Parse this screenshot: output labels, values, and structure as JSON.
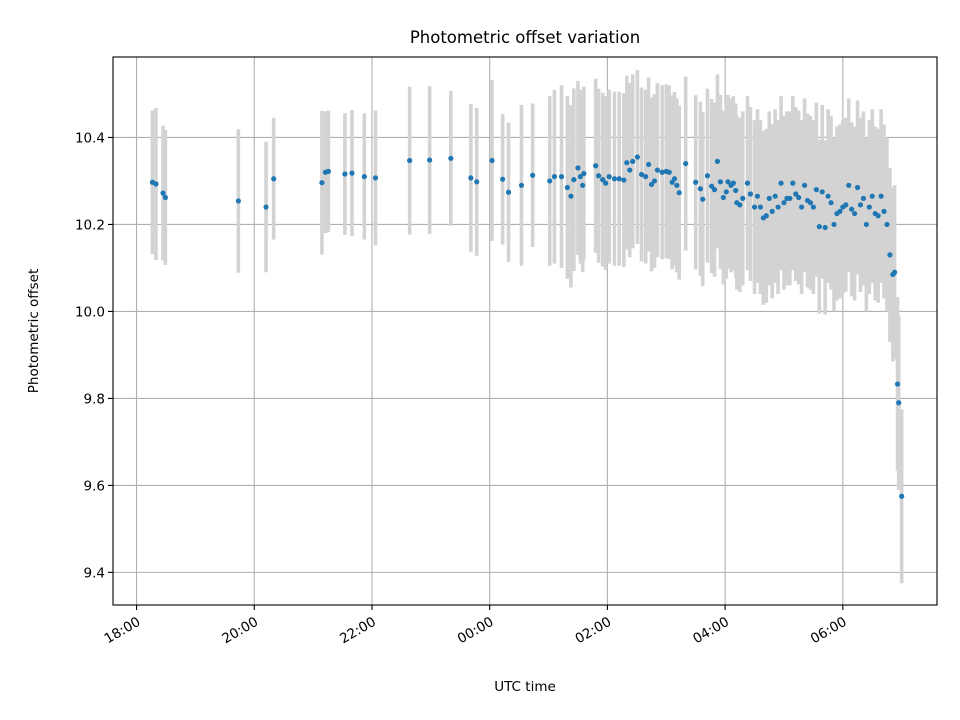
{
  "chart_data": {
    "type": "scatter",
    "title": "Photometric offset variation",
    "xlabel": "UTC time",
    "ylabel": "Photometric offset",
    "x_unit": "hours_from_00:00",
    "xlim": [
      -6.4,
      7.6
    ],
    "ylim": [
      9.325,
      10.585
    ],
    "x_ticks": [
      {
        "value": -6,
        "label": "18:00"
      },
      {
        "value": -4,
        "label": "20:00"
      },
      {
        "value": -2,
        "label": "22:00"
      },
      {
        "value": 0,
        "label": "00:00"
      },
      {
        "value": 2,
        "label": "02:00"
      },
      {
        "value": 4,
        "label": "04:00"
      },
      {
        "value": 6,
        "label": "06:00"
      }
    ],
    "y_ticks": [
      {
        "value": 9.4,
        "label": "9.4"
      },
      {
        "value": 9.6,
        "label": "9.6"
      },
      {
        "value": 9.8,
        "label": "9.8"
      },
      {
        "value": 10.0,
        "label": "10.0"
      },
      {
        "value": 10.2,
        "label": "10.2"
      },
      {
        "value": 10.4,
        "label": "10.4"
      }
    ],
    "grid": true,
    "colors": {
      "point": "#1f77b4",
      "errorbar": "#d3d3d3"
    },
    "points": [
      [
        -5.73,
        10.297,
        0.165
      ],
      [
        -5.67,
        10.293,
        0.175
      ],
      [
        -5.55,
        10.272,
        0.155
      ],
      [
        -5.51,
        10.262,
        0.155
      ],
      [
        -4.27,
        10.254,
        0.165
      ],
      [
        -3.8,
        10.24,
        0.15
      ],
      [
        -3.67,
        10.305,
        0.14
      ],
      [
        -2.85,
        10.296,
        0.165
      ],
      [
        -2.79,
        10.32,
        0.14
      ],
      [
        -2.74,
        10.322,
        0.14
      ],
      [
        -2.46,
        10.316,
        0.14
      ],
      [
        -2.34,
        10.318,
        0.145
      ],
      [
        -2.13,
        10.31,
        0.145
      ],
      [
        -1.94,
        10.307,
        0.155
      ],
      [
        -1.36,
        10.347,
        0.17
      ],
      [
        -1.02,
        10.348,
        0.17
      ],
      [
        -0.66,
        10.352,
        0.155
      ],
      [
        -0.32,
        10.307,
        0.17
      ],
      [
        -0.22,
        10.298,
        0.17
      ],
      [
        0.04,
        10.347,
        0.185
      ],
      [
        0.22,
        10.304,
        0.15
      ],
      [
        0.32,
        10.274,
        0.16
      ],
      [
        0.54,
        10.29,
        0.185
      ],
      [
        0.73,
        10.313,
        0.165
      ],
      [
        1.02,
        10.3,
        0.195
      ],
      [
        1.1,
        10.31,
        0.2
      ],
      [
        1.22,
        10.31,
        0.21
      ],
      [
        1.32,
        10.285,
        0.21
      ],
      [
        1.38,
        10.265,
        0.21
      ],
      [
        1.43,
        10.303,
        0.21
      ],
      [
        1.5,
        10.33,
        0.2
      ],
      [
        1.54,
        10.31,
        0.2
      ],
      [
        1.58,
        10.29,
        0.2
      ],
      [
        1.6,
        10.317,
        0.2
      ],
      [
        1.8,
        10.335,
        0.2
      ],
      [
        1.85,
        10.312,
        0.2
      ],
      [
        1.92,
        10.303,
        0.2
      ],
      [
        1.97,
        10.295,
        0.2
      ],
      [
        2.03,
        10.31,
        0.2
      ],
      [
        2.12,
        10.305,
        0.2
      ],
      [
        2.2,
        10.305,
        0.2
      ],
      [
        2.28,
        10.302,
        0.2
      ],
      [
        2.33,
        10.342,
        0.2
      ],
      [
        2.38,
        10.325,
        0.2
      ],
      [
        2.43,
        10.345,
        0.2
      ],
      [
        2.51,
        10.355,
        0.2
      ],
      [
        2.58,
        10.315,
        0.2
      ],
      [
        2.65,
        10.31,
        0.2
      ],
      [
        2.7,
        10.338,
        0.2
      ],
      [
        2.75,
        10.292,
        0.2
      ],
      [
        2.8,
        10.3,
        0.2
      ],
      [
        2.85,
        10.325,
        0.2
      ],
      [
        2.93,
        10.32,
        0.2
      ],
      [
        3.0,
        10.322,
        0.2
      ],
      [
        3.05,
        10.32,
        0.2
      ],
      [
        3.1,
        10.297,
        0.2
      ],
      [
        3.14,
        10.305,
        0.2
      ],
      [
        3.18,
        10.29,
        0.2
      ],
      [
        3.22,
        10.273,
        0.2
      ],
      [
        3.33,
        10.34,
        0.2
      ],
      [
        3.5,
        10.297,
        0.2
      ],
      [
        3.58,
        10.282,
        0.2
      ],
      [
        3.62,
        10.258,
        0.2
      ],
      [
        3.7,
        10.312,
        0.2
      ],
      [
        3.77,
        10.288,
        0.2
      ],
      [
        3.82,
        10.28,
        0.2
      ],
      [
        3.87,
        10.345,
        0.2
      ],
      [
        3.92,
        10.298,
        0.2
      ],
      [
        3.97,
        10.262,
        0.2
      ],
      [
        4.02,
        10.275,
        0.2
      ],
      [
        4.05,
        10.298,
        0.2
      ],
      [
        4.1,
        10.29,
        0.2
      ],
      [
        4.14,
        10.295,
        0.2
      ],
      [
        4.18,
        10.278,
        0.2
      ],
      [
        4.2,
        10.25,
        0.2
      ],
      [
        4.25,
        10.245,
        0.2
      ],
      [
        4.3,
        10.26,
        0.2
      ],
      [
        4.38,
        10.295,
        0.2
      ],
      [
        4.43,
        10.27,
        0.2
      ],
      [
        4.5,
        10.24,
        0.2
      ],
      [
        4.55,
        10.265,
        0.2
      ],
      [
        4.6,
        10.24,
        0.2
      ],
      [
        4.65,
        10.215,
        0.2
      ],
      [
        4.7,
        10.22,
        0.2
      ],
      [
        4.75,
        10.26,
        0.2
      ],
      [
        4.8,
        10.23,
        0.2
      ],
      [
        4.85,
        10.265,
        0.2
      ],
      [
        4.9,
        10.24,
        0.2
      ],
      [
        4.95,
        10.295,
        0.2
      ],
      [
        5.0,
        10.25,
        0.2
      ],
      [
        5.05,
        10.26,
        0.2
      ],
      [
        5.1,
        10.26,
        0.2
      ],
      [
        5.15,
        10.295,
        0.2
      ],
      [
        5.2,
        10.27,
        0.2
      ],
      [
        5.25,
        10.262,
        0.2
      ],
      [
        5.3,
        10.24,
        0.2
      ],
      [
        5.35,
        10.29,
        0.2
      ],
      [
        5.4,
        10.255,
        0.2
      ],
      [
        5.45,
        10.25,
        0.2
      ],
      [
        5.5,
        10.24,
        0.2
      ],
      [
        5.55,
        10.28,
        0.2
      ],
      [
        5.6,
        10.195,
        0.2
      ],
      [
        5.65,
        10.275,
        0.2
      ],
      [
        5.7,
        10.193,
        0.2
      ],
      [
        5.75,
        10.265,
        0.2
      ],
      [
        5.8,
        10.25,
        0.2
      ],
      [
        5.85,
        10.2,
        0.2
      ],
      [
        5.9,
        10.225,
        0.2
      ],
      [
        5.95,
        10.23,
        0.2
      ],
      [
        6.0,
        10.24,
        0.2
      ],
      [
        6.05,
        10.245,
        0.2
      ],
      [
        6.1,
        10.29,
        0.2
      ],
      [
        6.15,
        10.235,
        0.2
      ],
      [
        6.2,
        10.225,
        0.2
      ],
      [
        6.25,
        10.285,
        0.2
      ],
      [
        6.3,
        10.245,
        0.2
      ],
      [
        6.35,
        10.26,
        0.2
      ],
      [
        6.4,
        10.2,
        0.2
      ],
      [
        6.45,
        10.24,
        0.2
      ],
      [
        6.5,
        10.265,
        0.2
      ],
      [
        6.55,
        10.225,
        0.2
      ],
      [
        6.6,
        10.22,
        0.2
      ],
      [
        6.65,
        10.265,
        0.2
      ],
      [
        6.7,
        10.23,
        0.2
      ],
      [
        6.75,
        10.2,
        0.2
      ],
      [
        6.8,
        10.13,
        0.2
      ],
      [
        6.85,
        10.085,
        0.2
      ],
      [
        6.88,
        10.09,
        0.2
      ],
      [
        6.93,
        9.833,
        0.2
      ],
      [
        6.95,
        9.79,
        0.2
      ],
      [
        7.0,
        9.575,
        0.2
      ]
    ]
  }
}
